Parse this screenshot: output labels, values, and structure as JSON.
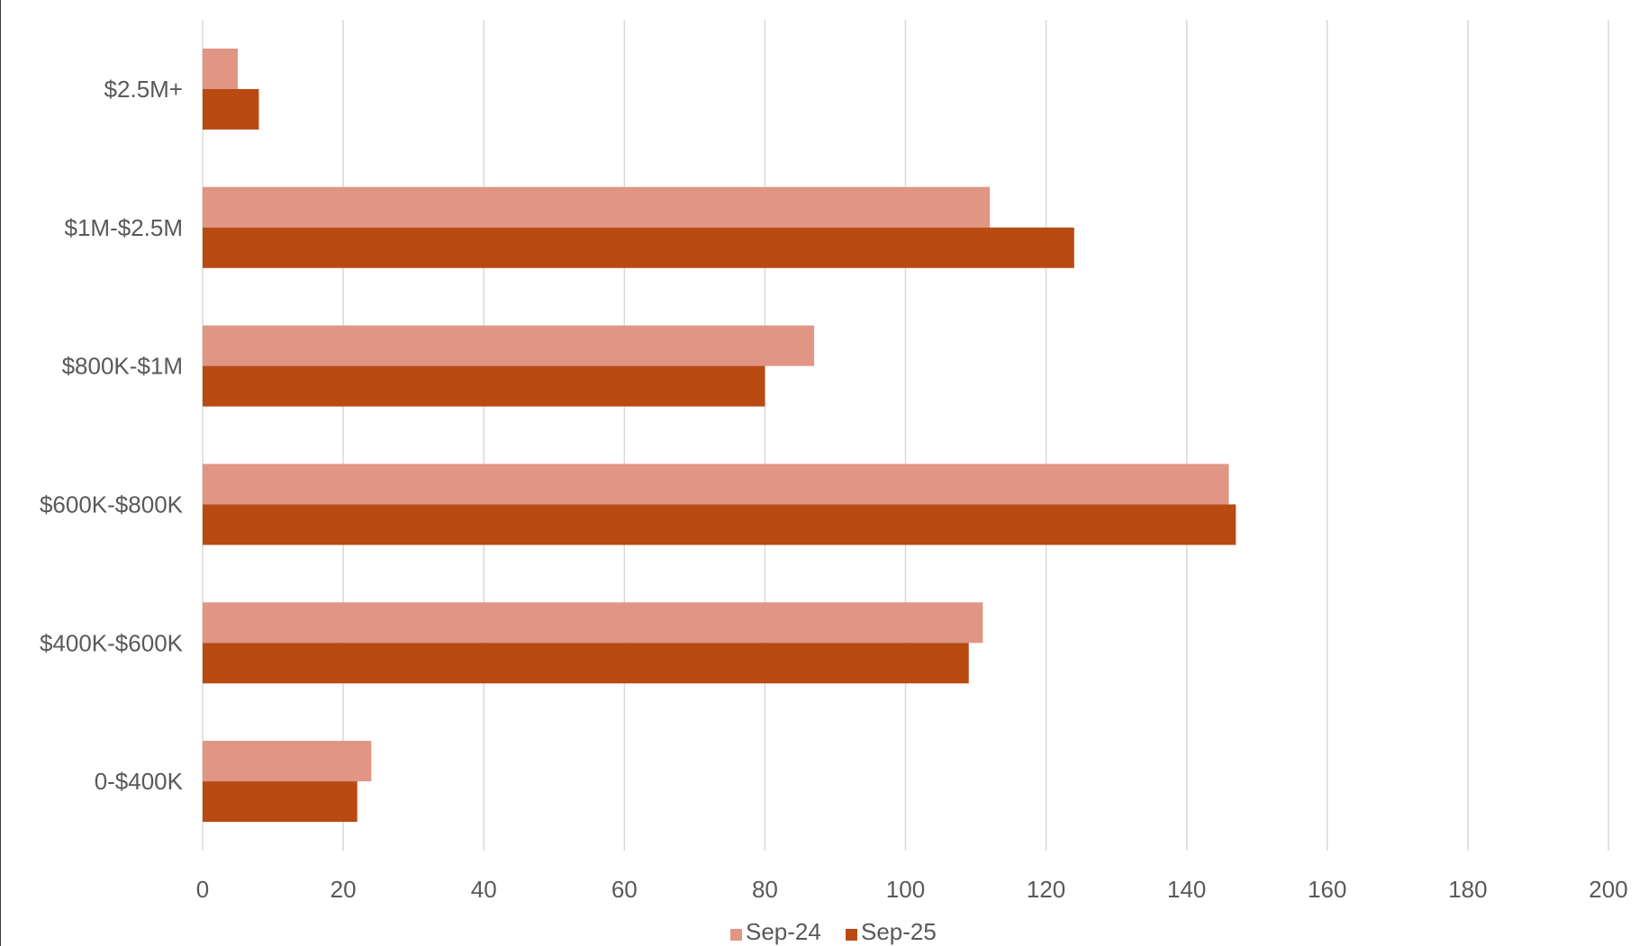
{
  "chart_data": {
    "type": "bar",
    "orientation": "horizontal",
    "title": "",
    "xlabel": "",
    "ylabel": "",
    "categories": [
      "0-$400K",
      "$400K-$600K",
      "$600K-$800K",
      "$800K-$1M",
      "$1M-$2.5M",
      "$2.5M+"
    ],
    "series": [
      {
        "name": "Sep-24",
        "color": "#E09585",
        "values": [
          24,
          111,
          146,
          87,
          112,
          5
        ]
      },
      {
        "name": "Sep-25",
        "color": "#B84A12",
        "values": [
          22,
          109,
          147,
          80,
          124,
          8
        ]
      }
    ],
    "xlim": [
      0,
      200
    ],
    "xticks": [
      "0",
      "20",
      "40",
      "60",
      "80",
      "100",
      "120",
      "140",
      "160",
      "180",
      "200"
    ],
    "grid": "vertical",
    "legend_position": "bottom"
  }
}
